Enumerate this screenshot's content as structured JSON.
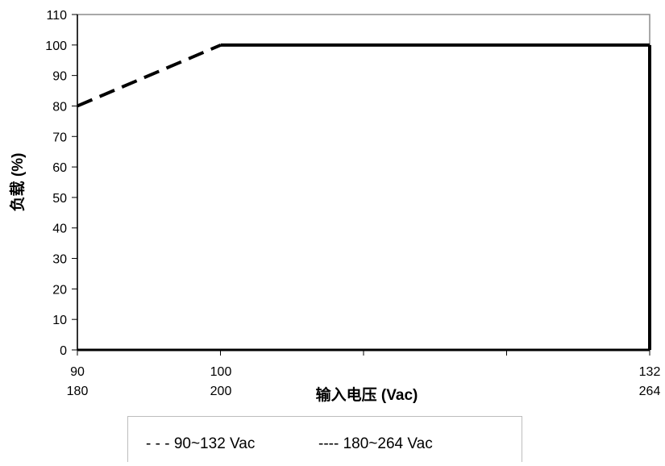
{
  "chart_data": {
    "type": "line",
    "title": "",
    "xlabel": "输入电压 (Vac)",
    "ylabel": "负载 (%)",
    "ylim": [
      0,
      110
    ],
    "yticks": [
      "0",
      "10",
      "20",
      "30",
      "40",
      "50",
      "60",
      "70",
      "80",
      "90",
      "100",
      "110"
    ],
    "xticks_top": [
      "90",
      "100",
      "132"
    ],
    "xticks_bottom": [
      "180",
      "200",
      "264"
    ],
    "grid": false,
    "legend_position": "bottom",
    "series": [
      {
        "name": "90~132 Vac",
        "style": "dashed",
        "x": [
          90,
          100
        ],
        "y": [
          80,
          100
        ]
      },
      {
        "name": "180~264 Vac",
        "style": "solid",
        "x": [
          100,
          132
        ],
        "y": [
          100,
          100
        ]
      }
    ],
    "legend": {
      "item1_marker": "- - -",
      "item1_label": "90~132 Vac",
      "item2_marker": "----",
      "item2_label": "180~264",
      "item2_unit": "Vac"
    },
    "colors": {
      "line": "#000000",
      "frame": "#8c8c8c"
    }
  }
}
